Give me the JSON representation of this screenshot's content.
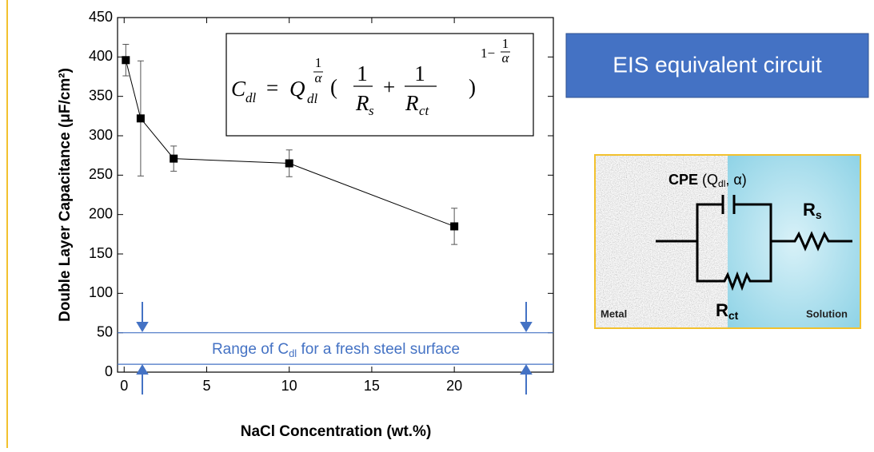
{
  "chart_data": {
    "type": "line",
    "xlabel": "NaCl Concentration (wt.%)",
    "ylabel": "Double Layer Capacitance (μF/cm²)",
    "x": [
      0.1,
      1,
      3,
      10,
      20
    ],
    "values": [
      396,
      322,
      271,
      265,
      185
    ],
    "errors": [
      20,
      73,
      16,
      17,
      23
    ],
    "color": "#000000",
    "xlim": [
      -0.4,
      26
    ],
    "xticks": [
      0,
      5,
      10,
      15,
      20
    ],
    "ylim": [
      0,
      450
    ],
    "yticks": [
      0,
      50,
      100,
      150,
      200,
      250,
      300,
      350,
      400,
      450
    ],
    "range_lines": [
      50,
      10
    ],
    "range_color": "#4472c4",
    "annotation": [
      "Range of C",
      "dl",
      " for a fresh steel surface"
    ],
    "formula": [
      "C",
      "dl",
      "=",
      "Q",
      "dl",
      "1",
      "α",
      "(",
      "1",
      "R",
      "s",
      "+",
      "1",
      "R",
      "ct",
      ")",
      "1−",
      "1",
      "α"
    ]
  },
  "panel": {
    "title": "EIS equivalent circuit",
    "circuit": [
      "CPE",
      " (Q",
      "dl",
      ", α)",
      "R",
      "s",
      "R",
      "ct",
      "Metal",
      "Solution"
    ]
  }
}
